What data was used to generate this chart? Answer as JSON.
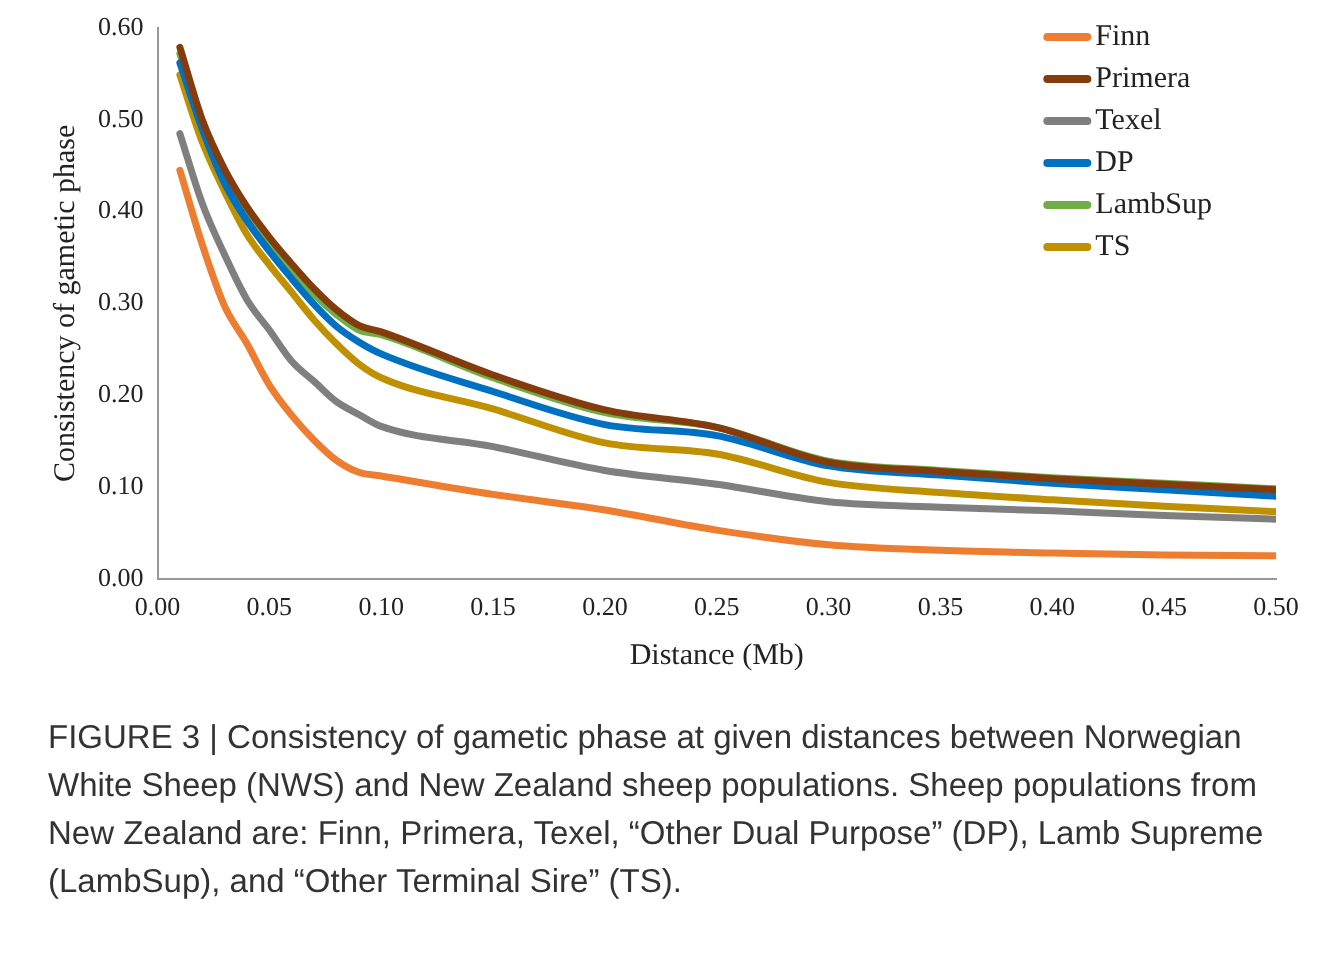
{
  "chart_data": {
    "type": "line",
    "xlabel": "Distance (Mb)",
    "ylabel": "Consistency of gametic phase",
    "x": [
      0.01,
      0.02,
      0.03,
      0.04,
      0.05,
      0.06,
      0.07,
      0.08,
      0.09,
      0.1,
      0.15,
      0.2,
      0.25,
      0.3,
      0.35,
      0.4,
      0.45,
      0.5
    ],
    "series": [
      {
        "name": "Finn",
        "color": "#ed7d31",
        "values": [
          0.445,
          0.364,
          0.297,
          0.256,
          0.211,
          0.178,
          0.151,
          0.129,
          0.116,
          0.112,
          0.092,
          0.075,
          0.053,
          0.037,
          0.031,
          0.028,
          0.026,
          0.025
        ]
      },
      {
        "name": "Primera",
        "color": "#843c0c",
        "values": [
          0.579,
          0.5,
          0.446,
          0.405,
          0.372,
          0.343,
          0.316,
          0.293,
          0.276,
          0.269,
          0.222,
          0.184,
          0.165,
          0.127,
          0.117,
          0.109,
          0.103,
          0.097
        ]
      },
      {
        "name": "Texel",
        "color": "#7f7f7f",
        "values": [
          0.485,
          0.409,
          0.353,
          0.304,
          0.271,
          0.237,
          0.215,
          0.193,
          0.179,
          0.166,
          0.144,
          0.118,
          0.103,
          0.084,
          0.078,
          0.074,
          0.069,
          0.065
        ]
      },
      {
        "name": "DP",
        "color": "#0070c0",
        "values": [
          0.562,
          0.49,
          0.431,
          0.39,
          0.357,
          0.327,
          0.299,
          0.275,
          0.258,
          0.245,
          0.204,
          0.168,
          0.156,
          0.123,
          0.113,
          0.104,
          0.097,
          0.09
        ]
      },
      {
        "name": "LambSup",
        "color": "#70ad47",
        "values": [
          0.572,
          0.497,
          0.443,
          0.4,
          0.366,
          0.338,
          0.31,
          0.288,
          0.271,
          0.266,
          0.219,
          0.181,
          0.165,
          0.128,
          0.118,
          0.11,
          0.104,
          0.098
        ]
      },
      {
        "name": "TS",
        "color": "#bf9000",
        "values": [
          0.549,
          0.476,
          0.422,
          0.375,
          0.342,
          0.312,
          0.282,
          0.256,
          0.234,
          0.219,
          0.185,
          0.148,
          0.136,
          0.105,
          0.094,
          0.086,
          0.079,
          0.073
        ]
      }
    ],
    "xlim": [
      0,
      0.5
    ],
    "xticks": [
      {
        "value": 0,
        "label": "0.00"
      },
      {
        "value": 0.05,
        "label": "0.05"
      },
      {
        "value": 0.1,
        "label": "0.10"
      },
      {
        "value": 0.15,
        "label": "0.15"
      },
      {
        "value": 0.2,
        "label": "0.20"
      },
      {
        "value": 0.25,
        "label": "0.25"
      },
      {
        "value": 0.3,
        "label": "0.30"
      },
      {
        "value": 0.35,
        "label": "0.35"
      },
      {
        "value": 0.4,
        "label": "0.40"
      },
      {
        "value": 0.45,
        "label": "0.45"
      },
      {
        "value": 0.5,
        "label": "0.50"
      }
    ],
    "ylim": [
      0,
      0.6
    ],
    "yticks": [
      {
        "value": 0,
        "label": "0.00"
      },
      {
        "value": 0.1,
        "label": "0.10"
      },
      {
        "value": 0.2,
        "label": "0.20"
      },
      {
        "value": 0.3,
        "label": "0.30"
      },
      {
        "value": 0.4,
        "label": "0.40"
      },
      {
        "value": 0.5,
        "label": "0.50"
      },
      {
        "value": 0.6,
        "label": "0.60"
      }
    ],
    "grid": false,
    "legend": "top right",
    "marker": "none",
    "line_style": "solid",
    "annotations": [
      "FIGURE 3 | Consistency of gametic phase at given distances between Norwegian White Sheep (NWS) and New Zealand sheep populations. Sheep populations from New Zealand are: Finn, Primera, Texel, “Other Dual Purpose” (DP), Lamb Supreme (LambSup), and “Other Terminal Sire” (TS)."
    ]
  }
}
